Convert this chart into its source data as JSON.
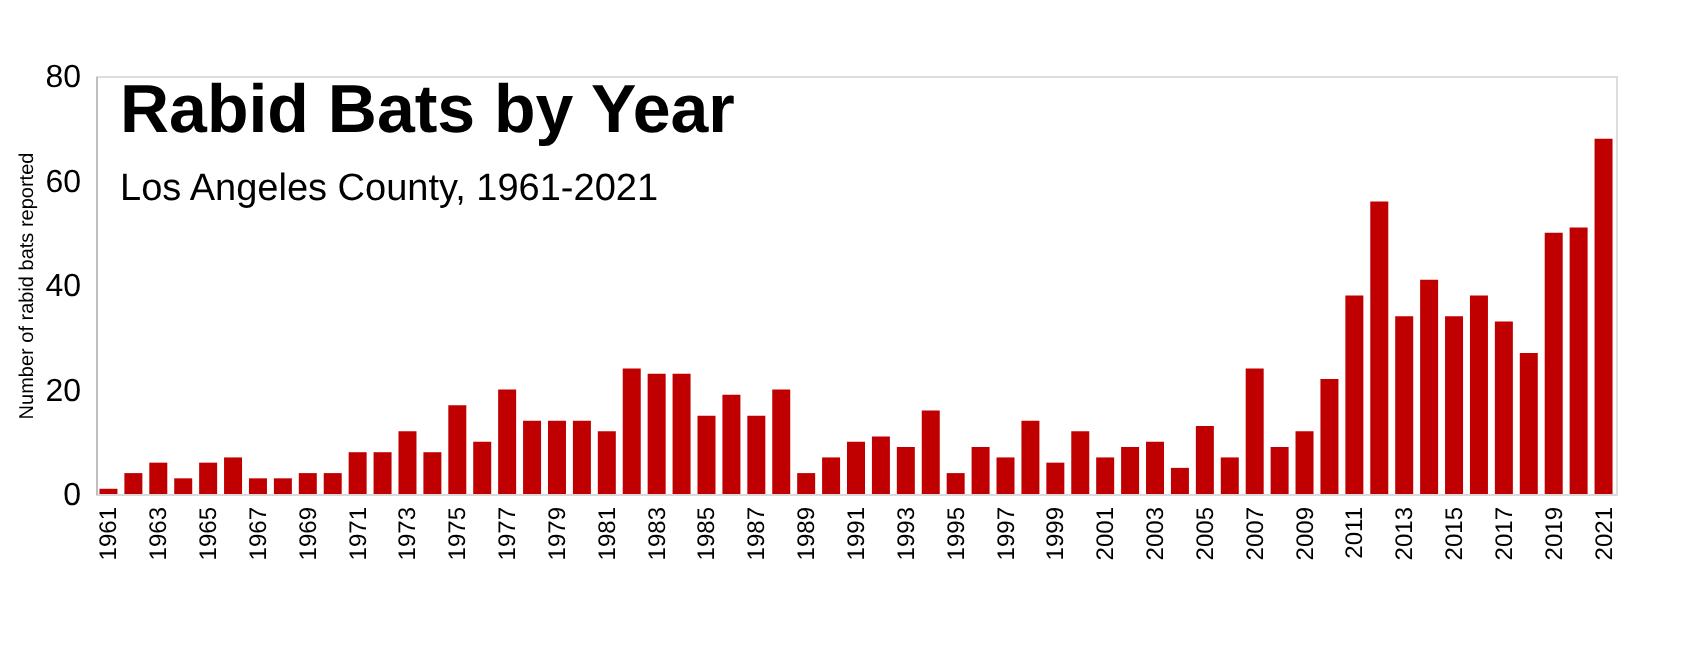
{
  "chart_data": {
    "type": "bar",
    "title": "Rabid Bats by Year",
    "subtitle": "Los Angeles County, 1961-2021",
    "ylabel": "Number of rabid bats reported",
    "categories": [
      "1961",
      null,
      "1963",
      null,
      "1965",
      null,
      "1967",
      null,
      "1969",
      null,
      "1971",
      null,
      "1973",
      null,
      "1975",
      null,
      "1977",
      null,
      "1979",
      null,
      "1981",
      null,
      "1983",
      null,
      "1985",
      null,
      "1987",
      null,
      "1989",
      null,
      "1991",
      null,
      "1993",
      null,
      "1995",
      null,
      "1997",
      null,
      "1999",
      null,
      "2001",
      null,
      "2003",
      null,
      "2005",
      null,
      "2007",
      null,
      "2009",
      null,
      "2011",
      null,
      "2013",
      null,
      "2015",
      null,
      "2017",
      null,
      "2019",
      null,
      "2021"
    ],
    "values": [
      1,
      4,
      6,
      3,
      6,
      7,
      3,
      3,
      4,
      4,
      8,
      8,
      12,
      8,
      17,
      10,
      20,
      14,
      14,
      14,
      12,
      24,
      23,
      23,
      15,
      19,
      15,
      20,
      4,
      7,
      10,
      11,
      9,
      16,
      4,
      9,
      7,
      14,
      6,
      12,
      7,
      9,
      10,
      5,
      13,
      7,
      24,
      9,
      12,
      22,
      38,
      56,
      34,
      41,
      34,
      38,
      33,
      27,
      50,
      51,
      68
    ],
    "color": "#c00000",
    "ylim": [
      0,
      80
    ],
    "yticks": [
      0,
      20,
      40,
      60,
      80
    ],
    "grid": false
  }
}
